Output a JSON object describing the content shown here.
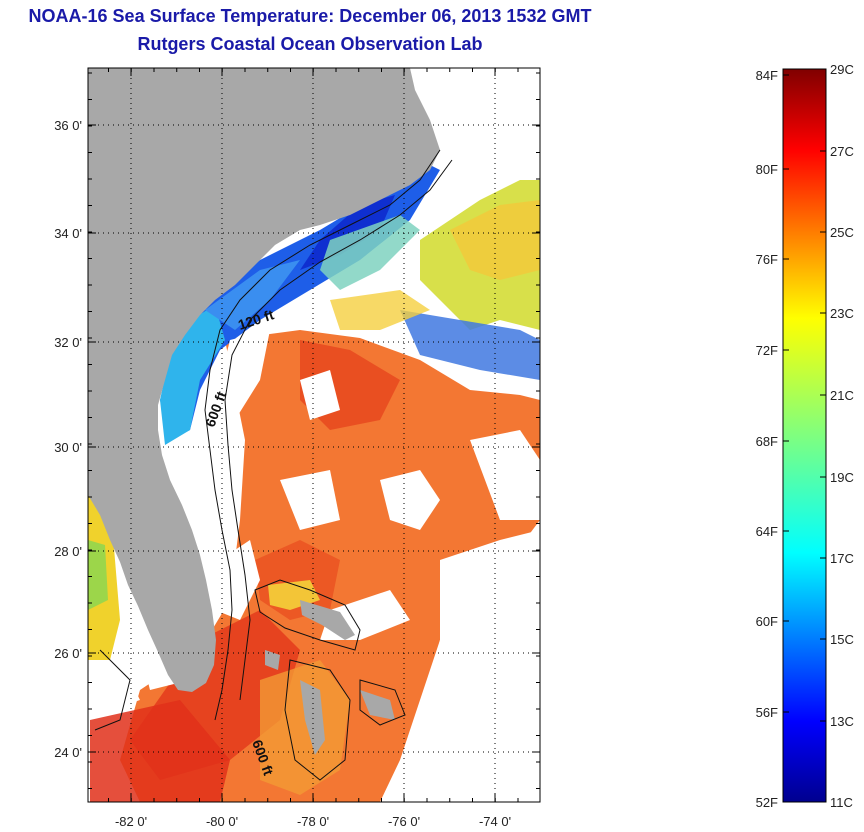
{
  "title": "NOAA-16 Sea Surface Temperature:  December 06, 2013 1532 GMT",
  "subtitle": "Rutgers Coastal Ocean Observation Lab",
  "map": {
    "lat_labels": [
      "36 0'",
      "34 0'",
      "32 0'",
      "30 0'",
      "28 0'",
      "26 0'",
      "24 0'"
    ],
    "lon_labels": [
      "-82 0'",
      "-80 0'",
      "-78 0'",
      "-76 0'",
      "-74 0'"
    ],
    "isobath_labels": [
      "120 ft",
      "600 ft",
      "600 ft"
    ],
    "colors": {
      "land": "#a8a8a8",
      "nodata": "#ffffff"
    }
  },
  "colorbar": {
    "fahrenheit_labels": [
      "84F",
      "80F",
      "76F",
      "72F",
      "68F",
      "64F",
      "60F",
      "56F",
      "52F"
    ],
    "celsius_labels": [
      "29C",
      "27C",
      "25C",
      "23C",
      "21C",
      "19C",
      "17C",
      "15C",
      "13C",
      "11C"
    ],
    "colormap": "jet",
    "range_c": [
      11,
      29
    ]
  }
}
